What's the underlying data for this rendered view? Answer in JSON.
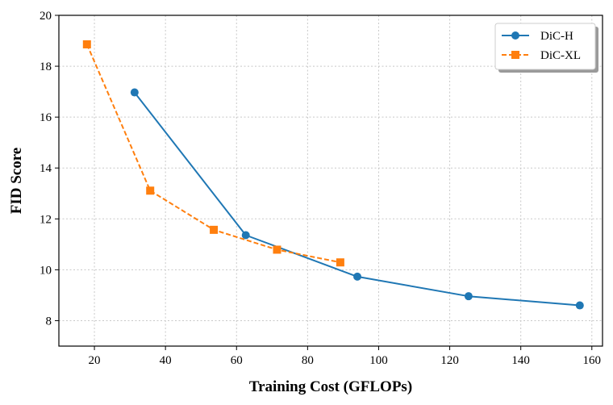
{
  "chart_data": {
    "type": "line",
    "title": "",
    "xlabel": "Training Cost (GFLOPs)",
    "ylabel": "FID Score",
    "xlim": [
      10,
      163
    ],
    "ylim": [
      7,
      20
    ],
    "xticks": [
      20,
      40,
      60,
      80,
      100,
      120,
      140,
      160
    ],
    "yticks": [
      8,
      10,
      12,
      14,
      16,
      18,
      20
    ],
    "grid": true,
    "legend_position": "top-right",
    "series": [
      {
        "name": "DiC-H",
        "color": "#1f77b4",
        "marker": "circle",
        "linestyle": "solid",
        "x": [
          31.3,
          62.6,
          94.0,
          125.3,
          156.6
        ],
        "y": [
          16.97,
          11.36,
          9.73,
          8.96,
          8.6
        ]
      },
      {
        "name": "DiC-XL",
        "color": "#ff7f0e",
        "marker": "square",
        "linestyle": "dashed",
        "x": [
          17.9,
          35.7,
          53.6,
          71.4,
          89.2
        ],
        "y": [
          18.86,
          13.11,
          11.57,
          10.79,
          10.29
        ]
      }
    ]
  }
}
